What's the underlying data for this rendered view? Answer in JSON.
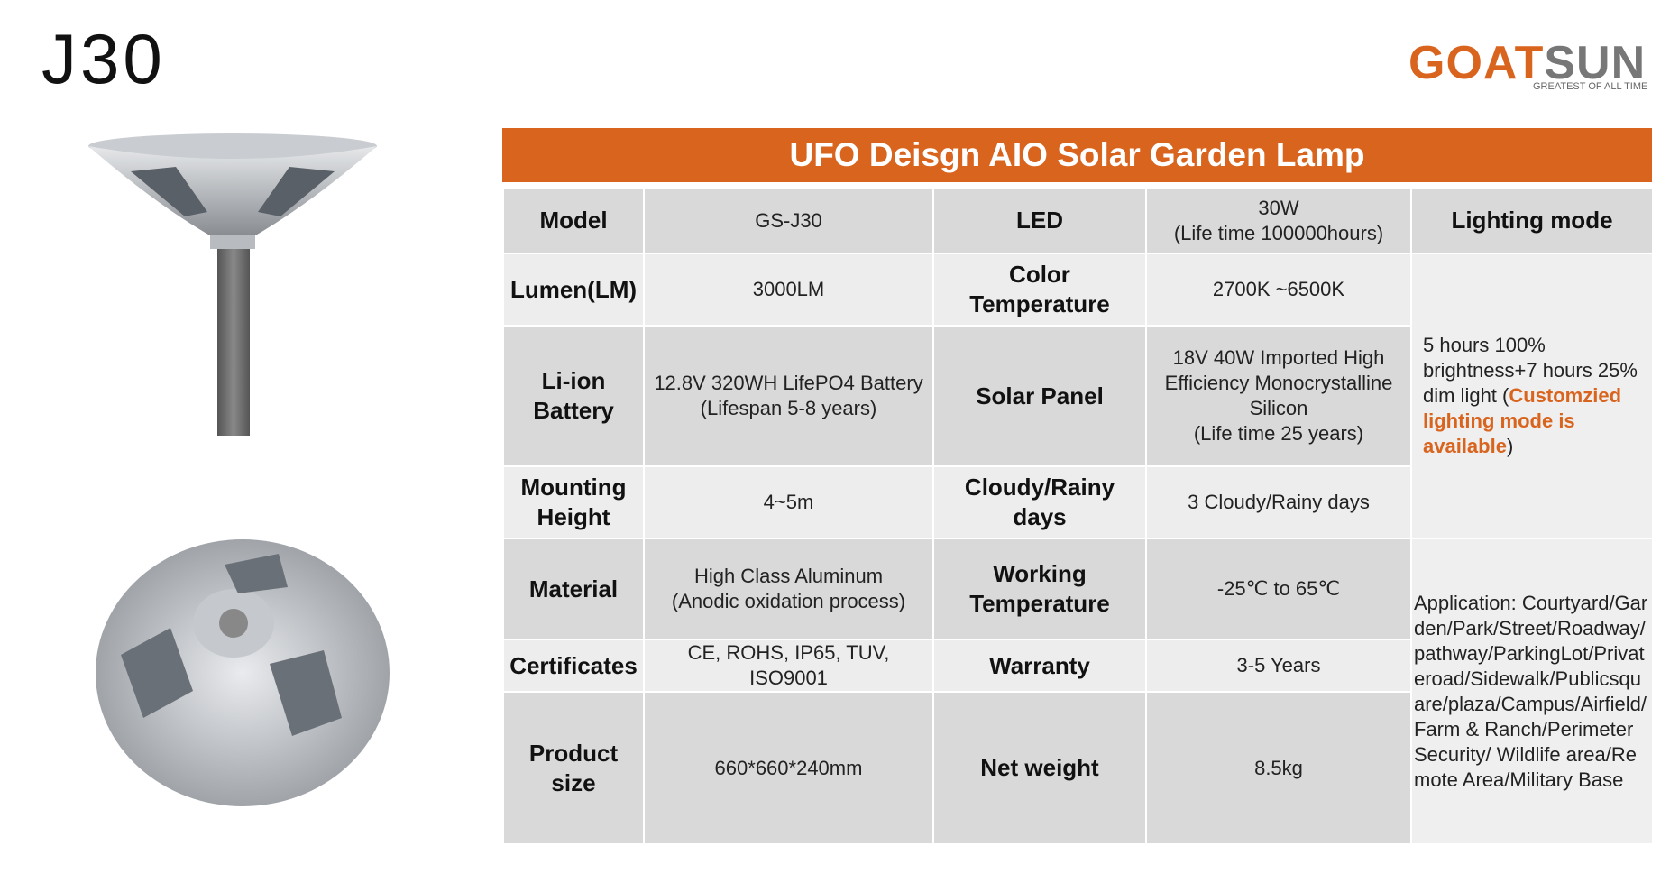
{
  "header": {
    "title": "J30",
    "brand_primary": "GOAT",
    "brand_secondary": "SUN",
    "tagline": "GREATEST OF ALL TIME"
  },
  "table": {
    "title": "UFO Deisgn AIO Solar Garden Lamp",
    "rows": [
      [
        "Model",
        "GS-J30",
        "LED",
        "30W\n(Life time 100000hours)"
      ],
      [
        "Lumen(LM)",
        "3000LM",
        "Color Temperature",
        "2700K ~6500K"
      ],
      [
        "Li-ion Battery",
        "12.8V 320WH  LifePO4 Battery\n(Lifespan 5-8 years)",
        "Solar Panel",
        "18V 40W Imported High Efficiency Monocrystalline Silicon\n(Life time 25 years)"
      ],
      [
        "Mounting Height",
        "4~5m",
        "Cloudy/Rainy days",
        "3 Cloudy/Rainy days"
      ],
      [
        "Material",
        "High Class Aluminum\n(Anodic oxidation process)",
        "Working Temperature",
        "-25℃ to 65℃"
      ],
      [
        "Certificates",
        "CE, ROHS, IP65, TUV, ISO9001",
        "Warranty",
        "3-5 Years"
      ],
      [
        "Product size",
        "660*660*240mm",
        "Net weight",
        "8.5kg"
      ]
    ],
    "lighting_mode_header": "Lighting mode",
    "lighting_mode": [
      "5 hours 100% brightness+7 hours 25% dim light (",
      "Customzied lighting mode is available",
      ")"
    ],
    "application": "Application: Courtyard/Garden/Park/Street/Roadway/pathway/ParkingLot/Privateroad/Sidewalk/Publicsquare/plaza/Campus/Airfield/Farm & Ranch/Perimeter Security/ Wildlife area/Remote Area/Military Base"
  }
}
